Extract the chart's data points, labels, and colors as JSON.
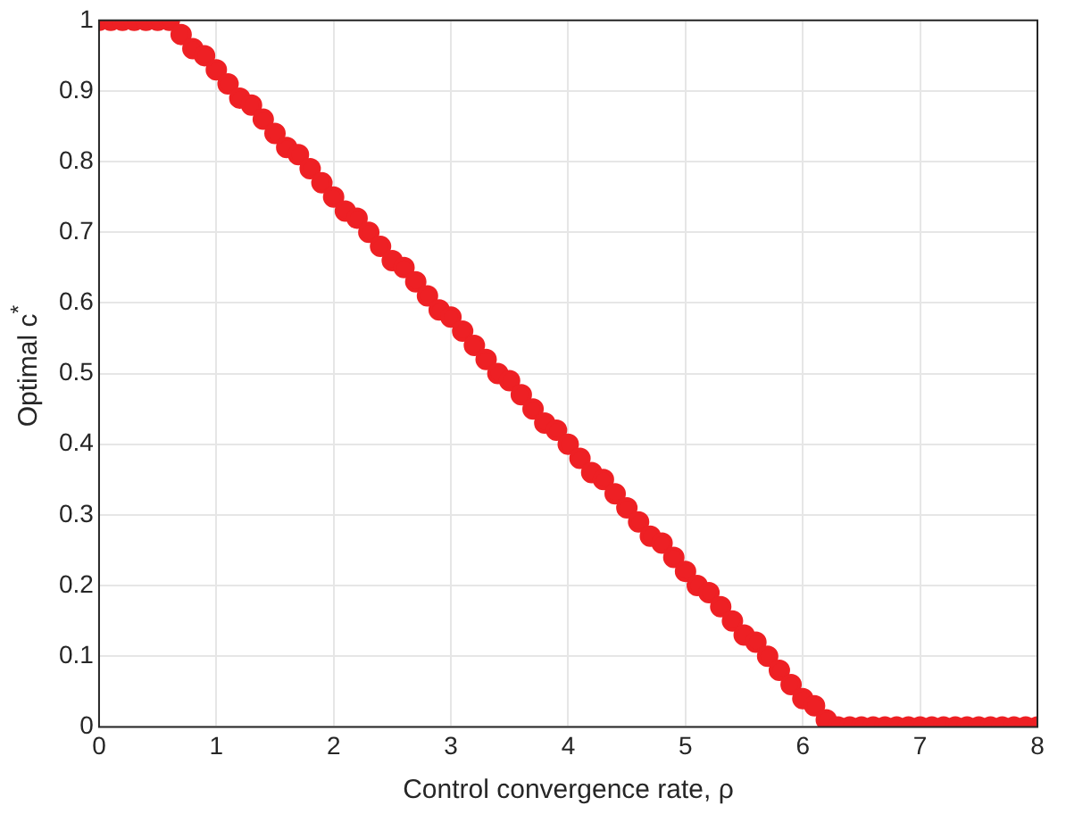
{
  "chart_data": {
    "type": "scatter",
    "xlabel": "Control convergence rate, ρ",
    "ylabel": "Optimal c$^{*}$",
    "x": [
      0,
      0.1,
      0.2,
      0.3,
      0.4,
      0.5,
      0.6,
      0.7,
      0.8,
      0.9,
      1.0,
      1.1,
      1.2,
      1.3,
      1.4,
      1.5,
      1.6,
      1.7,
      1.8,
      1.9,
      2.0,
      2.1,
      2.2,
      2.3,
      2.4,
      2.5,
      2.6,
      2.7,
      2.8,
      2.9,
      3.0,
      3.1,
      3.2,
      3.3,
      3.4,
      3.5,
      3.6,
      3.7,
      3.8,
      3.9,
      4.0,
      4.1,
      4.2,
      4.3,
      4.4,
      4.5,
      4.6,
      4.7,
      4.8,
      4.9,
      5.0,
      5.1,
      5.2,
      5.3,
      5.4,
      5.5,
      5.6,
      5.7,
      5.8,
      5.9,
      6.0,
      6.1,
      6.2,
      6.3,
      6.4,
      6.5,
      6.6,
      6.7,
      6.8,
      6.9,
      7.0,
      7.1,
      7.2,
      7.3,
      7.4,
      7.5,
      7.6,
      7.7,
      7.8,
      7.9,
      8.0
    ],
    "series": [
      {
        "color": "#ee2024",
        "values": [
          1,
          1,
          1,
          1,
          1,
          1,
          1,
          0.98,
          0.96,
          0.95,
          0.93,
          0.91,
          0.89,
          0.88,
          0.86,
          0.84,
          0.82,
          0.81,
          0.79,
          0.77,
          0.75,
          0.73,
          0.72,
          0.7,
          0.68,
          0.66,
          0.65,
          0.63,
          0.61,
          0.59,
          0.58,
          0.56,
          0.54,
          0.52,
          0.5,
          0.49,
          0.47,
          0.45,
          0.43,
          0.42,
          0.4,
          0.38,
          0.36,
          0.35,
          0.33,
          0.31,
          0.29,
          0.27,
          0.26,
          0.24,
          0.22,
          0.2,
          0.19,
          0.17,
          0.15,
          0.13,
          0.12,
          0.1,
          0.08,
          0.06,
          0.04,
          0.03,
          0.01,
          0,
          0,
          0,
          0,
          0,
          0,
          0,
          0,
          0,
          0,
          0,
          0,
          0,
          0,
          0,
          0,
          0,
          0
        ]
      }
    ],
    "xlim": [
      0,
      8
    ],
    "xticks": [
      0,
      1,
      2,
      3,
      4,
      5,
      6,
      7,
      8
    ],
    "ylim": [
      0,
      1
    ],
    "yticks": [
      0,
      0.1,
      0.2,
      0.3,
      0.4,
      0.5,
      0.6,
      0.7,
      0.8,
      0.9,
      1
    ],
    "grid": true,
    "marker": "circle",
    "legend": false
  }
}
